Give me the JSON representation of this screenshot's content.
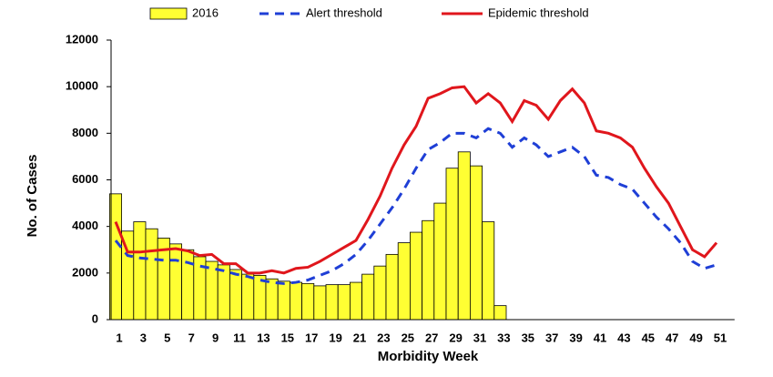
{
  "chart_data": {
    "type": "bar",
    "x_label": "Morbidity Week",
    "y_label": "No. of Cases",
    "categories": [
      1,
      null,
      3,
      null,
      5,
      null,
      7,
      null,
      9,
      null,
      11,
      null,
      13,
      null,
      15,
      null,
      17,
      null,
      19,
      null,
      21,
      null,
      23,
      null,
      25,
      null,
      27,
      null,
      29,
      null,
      31,
      null,
      33,
      null,
      35,
      null,
      37,
      null,
      39,
      null,
      41,
      null,
      43,
      null,
      45,
      null,
      47,
      null,
      49,
      null,
      51,
      null
    ],
    "ylim": [
      0,
      12000
    ],
    "yticks": [
      0,
      2000,
      4000,
      6000,
      8000,
      10000,
      12000
    ],
    "series": [
      {
        "name": "2016",
        "type": "bar",
        "color": "#ffff33",
        "values": [
          5400,
          3800,
          4200,
          3900,
          3500,
          3250,
          3000,
          2700,
          2500,
          2350,
          2150,
          1950,
          1900,
          1750,
          1650,
          1600,
          1550,
          1450,
          1500,
          1500,
          1600,
          1950,
          2300,
          2800,
          3300,
          3750,
          4250,
          5000,
          6500,
          7200,
          6600,
          4200,
          600,
          null,
          null,
          null,
          null,
          null,
          null,
          null,
          null,
          null,
          null,
          null,
          null,
          null,
          null,
          null,
          null,
          null,
          null,
          null
        ]
      },
      {
        "name": "Alert threshold",
        "type": "line",
        "dashed": true,
        "color": "#1f3fd6",
        "values": [
          3400,
          2750,
          2650,
          2600,
          2550,
          2550,
          2450,
          2300,
          2200,
          2100,
          1950,
          1850,
          1700,
          1600,
          1550,
          1600,
          1700,
          1900,
          2100,
          2400,
          2800,
          3400,
          4100,
          4800,
          5600,
          6500,
          7300,
          7600,
          8000,
          8000,
          7800,
          8200,
          8000,
          7400,
          7800,
          7500,
          7000,
          7200,
          7400,
          7000,
          6200,
          6100,
          5800,
          5600,
          5000,
          4400,
          3900,
          3300,
          2500,
          2200,
          2350,
          null
        ]
      },
      {
        "name": "Epidemic threshold",
        "type": "line",
        "dashed": false,
        "color": "#e0161c",
        "values": [
          4200,
          2900,
          2900,
          2950,
          3000,
          3050,
          2950,
          2750,
          2800,
          2400,
          2400,
          2000,
          2000,
          2100,
          2000,
          2200,
          2250,
          2500,
          2800,
          3100,
          3400,
          4300,
          5300,
          6500,
          7500,
          8300,
          9500,
          9700,
          9950,
          10000,
          9300,
          9700,
          9300,
          8500,
          9400,
          9200,
          8600,
          9400,
          9900,
          9300,
          8100,
          8000,
          7800,
          7400,
          6500,
          5700,
          5000,
          4000,
          3000,
          2700,
          3300,
          null
        ]
      }
    ]
  }
}
